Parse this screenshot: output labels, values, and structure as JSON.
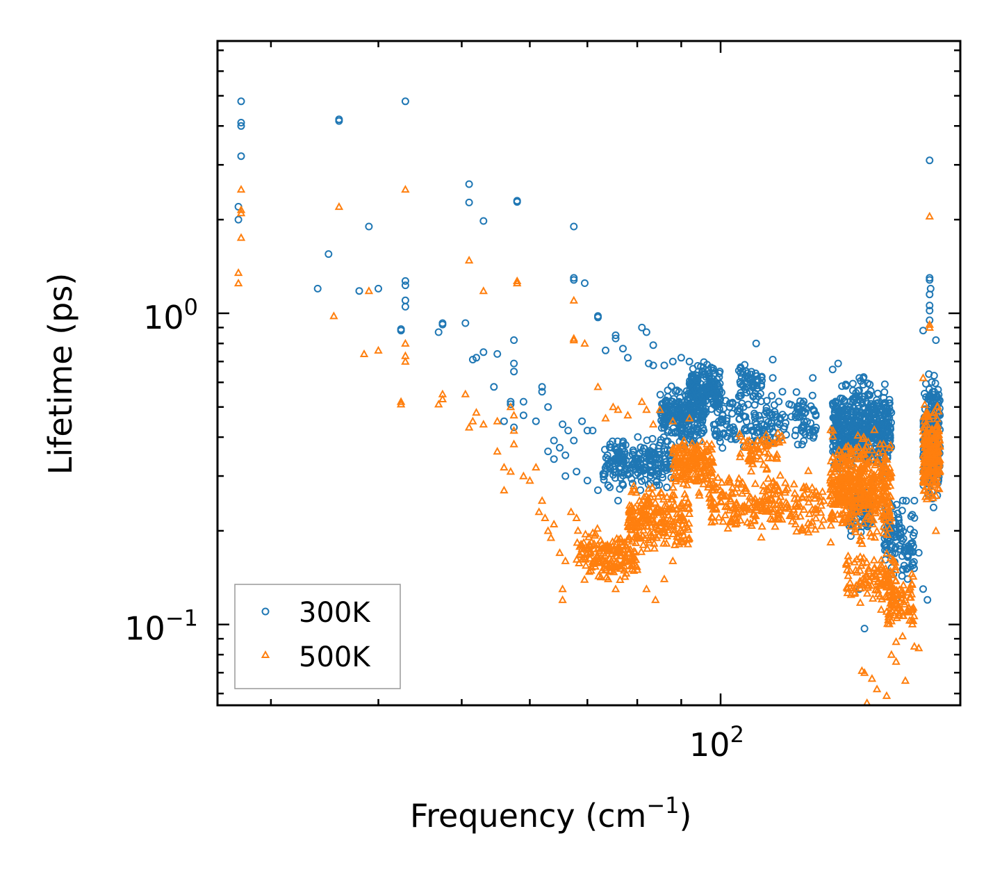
{
  "chart_data": {
    "type": "scatter",
    "xscale": "log",
    "yscale": "log",
    "xlim": [
      26,
      190
    ],
    "ylim": [
      0.055,
      7.5
    ],
    "xlabel": "Frequency (cm",
    "xlabel_sup": "−1",
    "xlabel_close": ")",
    "ylabel": "Lifetime (ps)",
    "x_tick_labels": [
      {
        "base": "10",
        "exp": "2",
        "value": 100
      }
    ],
    "y_tick_labels": [
      {
        "base": "10",
        "exp": "0",
        "value": 1.0
      },
      {
        "base": "10",
        "exp": "−1",
        "value": 0.1
      }
    ],
    "legend_position": "lower-left",
    "series": [
      {
        "name": "300K",
        "marker": "circle",
        "color": "#1f77b4",
        "points": [
          [
            27.7,
            4.8
          ],
          [
            27.7,
            4.1
          ],
          [
            27.7,
            4.0
          ],
          [
            27.7,
            3.2
          ],
          [
            27.5,
            2.2
          ],
          [
            27.5,
            2.0
          ],
          [
            36.0,
            4.2
          ],
          [
            36.0,
            4.15
          ],
          [
            39.0,
            1.9
          ],
          [
            35.0,
            1.55
          ],
          [
            38.0,
            1.18
          ],
          [
            40.0,
            1.2
          ],
          [
            34.0,
            1.2
          ],
          [
            43.0,
            4.8
          ],
          [
            43.0,
            1.27
          ],
          [
            43.0,
            1.23
          ],
          [
            43.0,
            1.1
          ],
          [
            43.0,
            1.05
          ],
          [
            42.5,
            0.89
          ],
          [
            42.5,
            0.88
          ],
          [
            47.0,
            0.87
          ],
          [
            47.5,
            0.92
          ],
          [
            47.5,
            0.93
          ],
          [
            51.0,
            2.6
          ],
          [
            53.0,
            1.98
          ],
          [
            51.0,
            2.27
          ],
          [
            50.5,
            0.93
          ],
          [
            51.5,
            0.71
          ],
          [
            52.0,
            0.72
          ],
          [
            53.0,
            0.75
          ],
          [
            55.0,
            0.74
          ],
          [
            57.5,
            0.82
          ],
          [
            57.5,
            0.69
          ],
          [
            57.5,
            0.65
          ],
          [
            54.5,
            0.58
          ],
          [
            57.0,
            0.52
          ],
          [
            57.0,
            0.51
          ],
          [
            59.0,
            0.47
          ],
          [
            56.0,
            0.45
          ],
          [
            57.5,
            0.43
          ],
          [
            58.0,
            2.3
          ],
          [
            58.0,
            2.28
          ],
          [
            59.0,
            0.52
          ],
          [
            61.0,
            0.45
          ],
          [
            62.0,
            0.58
          ],
          [
            62.0,
            0.56
          ],
          [
            63.0,
            0.5
          ],
          [
            65.5,
            0.44
          ],
          [
            65.0,
            0.37
          ],
          [
            66.0,
            0.35
          ],
          [
            64.0,
            0.39
          ],
          [
            67.5,
            1.9
          ],
          [
            67.5,
            1.3
          ],
          [
            67.5,
            1.28
          ],
          [
            67.5,
            0.39
          ],
          [
            66.5,
            0.42
          ],
          [
            69.5,
            1.25
          ],
          [
            69.0,
            0.45
          ],
          [
            70.0,
            0.42
          ],
          [
            71.0,
            0.42
          ],
          [
            72.0,
            0.97
          ],
          [
            72.0,
            0.98
          ],
          [
            73.5,
            0.76
          ],
          [
            75.5,
            0.85
          ],
          [
            75.5,
            0.83
          ],
          [
            77.0,
            0.77
          ],
          [
            78.0,
            0.72
          ],
          [
            81.0,
            0.9
          ],
          [
            82.0,
            0.87
          ],
          [
            82.5,
            0.69
          ],
          [
            83.5,
            0.68
          ],
          [
            83.5,
            0.79
          ],
          [
            86.0,
            0.68
          ],
          [
            88.0,
            0.7
          ],
          [
            90.0,
            0.72
          ],
          [
            92.0,
            0.7
          ],
          [
            110.0,
            0.8
          ],
          [
            115.0,
            0.71
          ],
          [
            115.0,
            0.62
          ],
          [
            118.0,
            0.56
          ],
          [
            128.0,
            0.62
          ],
          [
            135.0,
            0.66
          ],
          [
            137.0,
            0.69
          ],
          [
            145.0,
            0.62
          ],
          [
            150.0,
            0.5
          ],
          [
            140.0,
            0.46
          ],
          [
            155.0,
            0.18
          ],
          [
            160.0,
            0.12
          ],
          [
            175.0,
            3.1
          ],
          [
            175.0,
            1.28
          ],
          [
            175.0,
            1.3
          ],
          [
            175.5,
            1.2
          ],
          [
            175.0,
            1.15
          ],
          [
            175.0,
            1.06
          ],
          [
            175.0,
            1.02
          ],
          [
            172.0,
            0.88
          ],
          [
            175.0,
            0.95
          ],
          [
            178.0,
            0.82
          ],
          [
            168.0,
            0.25
          ],
          [
            168.0,
            0.22
          ],
          [
            170.0,
            0.17
          ],
          [
            172.0,
            0.13
          ],
          [
            174.0,
            0.12
          ],
          [
            147.0,
            0.097
          ],
          [
            145.0,
            0.13
          ],
          [
            160.0,
            0.12
          ],
          [
            163.0,
            0.15
          ],
          [
            165.0,
            0.14
          ],
          [
            70.0,
            0.29
          ],
          [
            72.0,
            0.27
          ],
          [
            74.0,
            0.28
          ],
          [
            76.0,
            0.25
          ],
          [
            68.0,
            0.31
          ],
          [
            66.0,
            0.3
          ],
          [
            63.0,
            0.36
          ],
          [
            64.0,
            0.34
          ],
          [
            77.0,
            0.34
          ],
          [
            79.0,
            0.32
          ]
        ],
        "clusters": [
          {
            "xmin": 73.0,
            "xmax": 88.0,
            "ymin": 0.26,
            "ymax": 0.42,
            "n": 210
          },
          {
            "xmin": 85.0,
            "xmax": 96.0,
            "ymin": 0.36,
            "ymax": 0.62,
            "n": 240
          },
          {
            "xmin": 92.0,
            "xmax": 100.0,
            "ymin": 0.45,
            "ymax": 0.72,
            "n": 160
          },
          {
            "xmin": 98.0,
            "xmax": 130.0,
            "ymin": 0.33,
            "ymax": 0.6,
            "n": 200
          },
          {
            "xmin": 105.0,
            "xmax": 112.0,
            "ymin": 0.5,
            "ymax": 0.72,
            "n": 50
          },
          {
            "xmin": 135.0,
            "xmax": 158.0,
            "ymin": 0.28,
            "ymax": 0.66,
            "n": 520
          },
          {
            "xmin": 141.0,
            "xmax": 150.0,
            "ymin": 0.18,
            "ymax": 0.3,
            "n": 80
          },
          {
            "xmin": 155.0,
            "xmax": 168.0,
            "ymin": 0.13,
            "ymax": 0.27,
            "n": 110
          },
          {
            "xmin": 172.0,
            "xmax": 180.0,
            "ymin": 0.22,
            "ymax": 0.75,
            "n": 220
          }
        ]
      },
      {
        "name": "500K",
        "marker": "triangle",
        "color": "#ff7f0e",
        "points": [
          [
            27.7,
            2.5
          ],
          [
            27.7,
            2.15
          ],
          [
            27.7,
            2.1
          ],
          [
            27.7,
            1.75
          ],
          [
            27.5,
            1.35
          ],
          [
            27.5,
            1.25
          ],
          [
            36.0,
            2.2
          ],
          [
            39.0,
            1.18
          ],
          [
            35.5,
            0.98
          ],
          [
            38.5,
            0.74
          ],
          [
            40.0,
            0.76
          ],
          [
            43.0,
            2.5
          ],
          [
            43.0,
            0.8
          ],
          [
            43.0,
            0.73
          ],
          [
            43.0,
            0.7
          ],
          [
            42.5,
            0.52
          ],
          [
            42.5,
            0.51
          ],
          [
            47.0,
            0.51
          ],
          [
            47.5,
            0.53
          ],
          [
            47.5,
            0.55
          ],
          [
            50.5,
            0.55
          ],
          [
            51.0,
            1.48
          ],
          [
            53.0,
            1.18
          ],
          [
            51.0,
            0.43
          ],
          [
            51.5,
            0.45
          ],
          [
            52.0,
            0.48
          ],
          [
            53.0,
            0.44
          ],
          [
            55.0,
            0.45
          ],
          [
            57.0,
            0.5
          ],
          [
            57.5,
            0.47
          ],
          [
            57.5,
            0.42
          ],
          [
            57.5,
            0.38
          ],
          [
            55.0,
            0.36
          ],
          [
            56.0,
            0.32
          ],
          [
            57.0,
            0.31
          ],
          [
            56.0,
            0.27
          ],
          [
            58.0,
            1.27
          ],
          [
            58.0,
            1.25
          ],
          [
            59.0,
            0.3
          ],
          [
            60.0,
            0.29
          ],
          [
            61.0,
            0.32
          ],
          [
            61.5,
            0.23
          ],
          [
            62.0,
            0.25
          ],
          [
            62.5,
            0.22
          ],
          [
            63.0,
            0.2
          ],
          [
            63.5,
            0.19
          ],
          [
            64.0,
            0.21
          ],
          [
            65.0,
            0.17
          ],
          [
            65.5,
            0.13
          ],
          [
            65.5,
            0.12
          ],
          [
            66.0,
            0.16
          ],
          [
            67.5,
            1.1
          ],
          [
            67.5,
            0.83
          ],
          [
            67.5,
            0.82
          ],
          [
            67.0,
            0.23
          ],
          [
            68.0,
            0.22
          ],
          [
            69.5,
            0.8
          ],
          [
            72.0,
            0.58
          ],
          [
            73.5,
            0.46
          ],
          [
            75.0,
            0.5
          ],
          [
            76.0,
            0.49
          ],
          [
            78.0,
            0.47
          ],
          [
            81.0,
            0.52
          ],
          [
            82.0,
            0.49
          ],
          [
            83.5,
            0.44
          ],
          [
            85.0,
            0.49
          ],
          [
            88.0,
            0.45
          ],
          [
            92.0,
            0.46
          ],
          [
            175.0,
            2.05
          ],
          [
            175.0,
            0.92
          ],
          [
            175.0,
            0.9
          ],
          [
            172.0,
            0.62
          ],
          [
            178.0,
            0.2
          ],
          [
            160.0,
            0.088
          ],
          [
            158.0,
            0.08
          ],
          [
            160.0,
            0.076
          ],
          [
            146.0,
            0.071
          ],
          [
            147.0,
            0.07
          ],
          [
            150.0,
            0.067
          ],
          [
            152.0,
            0.062
          ],
          [
            156.0,
            0.059
          ],
          [
            164.0,
            0.066
          ],
          [
            168.0,
            0.085
          ],
          [
            170.0,
            0.084
          ],
          [
            148.0,
            0.056
          ],
          [
            69.0,
            0.18
          ],
          [
            70.5,
            0.17
          ],
          [
            72.0,
            0.16
          ],
          [
            73.5,
            0.15
          ],
          [
            74.0,
            0.14
          ],
          [
            75.5,
            0.13
          ],
          [
            77.0,
            0.18
          ],
          [
            79.0,
            0.16
          ],
          [
            80.0,
            0.15
          ],
          [
            82.0,
            0.13
          ],
          [
            84.0,
            0.12
          ],
          [
            86.0,
            0.14
          ],
          [
            88.0,
            0.16
          ]
        ],
        "clusters": [
          {
            "xmin": 68.0,
            "xmax": 80.0,
            "ymin": 0.13,
            "ymax": 0.21,
            "n": 160
          },
          {
            "xmin": 78.0,
            "xmax": 92.0,
            "ymin": 0.16,
            "ymax": 0.3,
            "n": 230
          },
          {
            "xmin": 88.0,
            "xmax": 98.0,
            "ymin": 0.25,
            "ymax": 0.43,
            "n": 180
          },
          {
            "xmin": 97.0,
            "xmax": 132.0,
            "ymin": 0.18,
            "ymax": 0.33,
            "n": 240
          },
          {
            "xmin": 105.0,
            "xmax": 118.0,
            "ymin": 0.3,
            "ymax": 0.45,
            "n": 60
          },
          {
            "xmin": 134.0,
            "xmax": 158.0,
            "ymin": 0.17,
            "ymax": 0.45,
            "n": 460
          },
          {
            "xmin": 140.0,
            "xmax": 160.0,
            "ymin": 0.11,
            "ymax": 0.18,
            "n": 120
          },
          {
            "xmin": 156.0,
            "xmax": 168.0,
            "ymin": 0.09,
            "ymax": 0.15,
            "n": 80
          },
          {
            "xmin": 172.0,
            "xmax": 180.0,
            "ymin": 0.22,
            "ymax": 0.55,
            "n": 200
          }
        ]
      }
    ]
  }
}
